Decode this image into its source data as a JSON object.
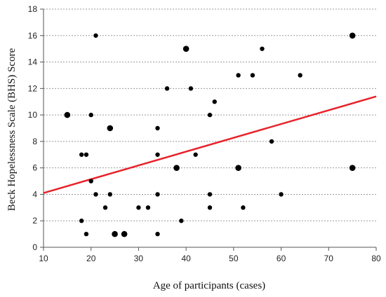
{
  "chart_data": {
    "type": "scatter",
    "xlabel": "Age of participants (cases)",
    "ylabel": "Beck Hopelessness Scale (BHS) Score",
    "xlim": [
      10,
      80
    ],
    "ylim": [
      0,
      18
    ],
    "xticks": [
      10,
      20,
      30,
      40,
      50,
      60,
      70,
      80
    ],
    "yticks": [
      0,
      2,
      4,
      6,
      8,
      10,
      12,
      14,
      16,
      18
    ],
    "grid": "horizontal-dotted",
    "points": [
      {
        "x": 15,
        "y": 10,
        "size": "large"
      },
      {
        "x": 18,
        "y": 7,
        "size": "small"
      },
      {
        "x": 18,
        "y": 2,
        "size": "small"
      },
      {
        "x": 19,
        "y": 7,
        "size": "small"
      },
      {
        "x": 19,
        "y": 1,
        "size": "small"
      },
      {
        "x": 20,
        "y": 10,
        "size": "small"
      },
      {
        "x": 20,
        "y": 5,
        "size": "small"
      },
      {
        "x": 21,
        "y": 16,
        "size": "small"
      },
      {
        "x": 21,
        "y": 4,
        "size": "small"
      },
      {
        "x": 23,
        "y": 3,
        "size": "small"
      },
      {
        "x": 24,
        "y": 9,
        "size": "large"
      },
      {
        "x": 24,
        "y": 4,
        "size": "small"
      },
      {
        "x": 25,
        "y": 1,
        "size": "large"
      },
      {
        "x": 27,
        "y": 1,
        "size": "large"
      },
      {
        "x": 30,
        "y": 3,
        "size": "small"
      },
      {
        "x": 32,
        "y": 3,
        "size": "small"
      },
      {
        "x": 34,
        "y": 9,
        "size": "small"
      },
      {
        "x": 34,
        "y": 7,
        "size": "small"
      },
      {
        "x": 34,
        "y": 4,
        "size": "small"
      },
      {
        "x": 34,
        "y": 1,
        "size": "small"
      },
      {
        "x": 36,
        "y": 12,
        "size": "small"
      },
      {
        "x": 38,
        "y": 6,
        "size": "large"
      },
      {
        "x": 39,
        "y": 2,
        "size": "small"
      },
      {
        "x": 40,
        "y": 15,
        "size": "large"
      },
      {
        "x": 41,
        "y": 12,
        "size": "small"
      },
      {
        "x": 42,
        "y": 7,
        "size": "small"
      },
      {
        "x": 45,
        "y": 10,
        "size": "small"
      },
      {
        "x": 45,
        "y": 4,
        "size": "small"
      },
      {
        "x": 45,
        "y": 3,
        "size": "small"
      },
      {
        "x": 46,
        "y": 11,
        "size": "small"
      },
      {
        "x": 51,
        "y": 13,
        "size": "small"
      },
      {
        "x": 51,
        "y": 6,
        "size": "large"
      },
      {
        "x": 52,
        "y": 3,
        "size": "small"
      },
      {
        "x": 54,
        "y": 13,
        "size": "small"
      },
      {
        "x": 56,
        "y": 15,
        "size": "small"
      },
      {
        "x": 58,
        "y": 8,
        "size": "small"
      },
      {
        "x": 60,
        "y": 4,
        "size": "small"
      },
      {
        "x": 64,
        "y": 13,
        "size": "small"
      },
      {
        "x": 75,
        "y": 16,
        "size": "large"
      },
      {
        "x": 75,
        "y": 6,
        "size": "large"
      }
    ],
    "trendline": {
      "x": [
        10,
        80
      ],
      "y": [
        4.1,
        11.4
      ]
    },
    "colors": {
      "points": "#000000",
      "trendline": "#e8222a",
      "axes": "#555555",
      "grid": "#9a9a9a"
    }
  }
}
